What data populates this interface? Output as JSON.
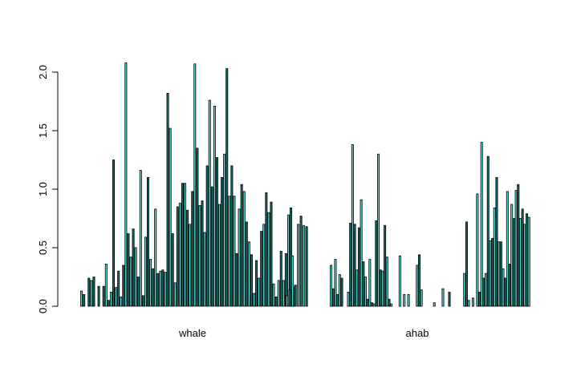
{
  "chart_data": {
    "type": "bar",
    "title": "",
    "xlabel": "",
    "ylabel": "",
    "ylim": [
      0,
      2.1
    ],
    "yticks": [
      0.0,
      0.5,
      1.0,
      1.5,
      2.0
    ],
    "ytick_labels": [
      "0.0",
      "0.5",
      "1.0",
      "1.5",
      "2.0"
    ],
    "grid": false,
    "legend": "none",
    "bar_colors": [
      "#4fd8d2",
      "#17706c"
    ],
    "outline_color": "#000000",
    "groups": [
      {
        "label": "whale",
        "values": [
          0.13,
          0.1,
          0,
          0.24,
          0.22,
          0.25,
          0,
          0.17,
          0,
          0.17,
          0.36,
          0.05,
          0.12,
          1.25,
          0.16,
          0.3,
          0.08,
          0.35,
          2.08,
          0.62,
          0.42,
          0.66,
          0.5,
          0.25,
          1.16,
          0.09,
          0.59,
          1.1,
          0.4,
          0.32,
          0.83,
          0.28,
          0.3,
          0.31,
          0.29,
          1.82,
          1.52,
          0.62,
          0.2,
          0.85,
          0.88,
          1.05,
          1.05,
          0.82,
          0.7,
          0.98,
          2.07,
          1.35,
          0.86,
          0.9,
          0.63,
          1.2,
          1.76,
          1.02,
          1.71,
          1.27,
          0.87,
          1.1,
          1.3,
          2.03,
          0.94,
          1.2,
          0.94,
          0.45,
          0.83,
          1.04,
          0.98,
          0.72,
          0.55,
          0.44,
          0.11,
          0.39,
          0.24,
          0.64,
          0.7,
          0.97,
          0.8,
          0.89,
          0.19,
          0.08,
          0.22,
          0.47,
          0.22,
          0.45,
          0.78,
          0.84,
          0.16
        ],
        "tail_values": [
          0.09,
          0.14,
          0.43,
          0.18,
          0.7,
          0.77,
          0.69,
          0.68
        ]
      },
      {
        "label": "ahab",
        "values": [
          0.35,
          0.15,
          0.4,
          0.1,
          0.27,
          0.24,
          0,
          0,
          0.12,
          0.71,
          1.38,
          0.7,
          0.31,
          0.67,
          0.91,
          0.38,
          0.25,
          0.06,
          0.4,
          0.03,
          0.02,
          0.73,
          1.3,
          0.31,
          0.3,
          0.69,
          0.42,
          0.06,
          0.02,
          0,
          0,
          0,
          0.43,
          0,
          0.1,
          0,
          0.1,
          0,
          0,
          0,
          0.35,
          0.44,
          0.14,
          0,
          0,
          0,
          0,
          0,
          0.03,
          0,
          0,
          0,
          0.15,
          0,
          0,
          0.12,
          0,
          0,
          0,
          0,
          0,
          0,
          0.28,
          0.72,
          0.05,
          0,
          0.07,
          0,
          0.96,
          0.12,
          1.4,
          0.24,
          0.28,
          1.28,
          0.56,
          0.58,
          0.84,
          1.1,
          0.55,
          0.55,
          0.32,
          0.24,
          0.98,
          0.36,
          0.87,
          0.75,
          0.99,
          1.04,
          0.75,
          0.83,
          0.7,
          0.79,
          0.76
        ]
      }
    ]
  }
}
